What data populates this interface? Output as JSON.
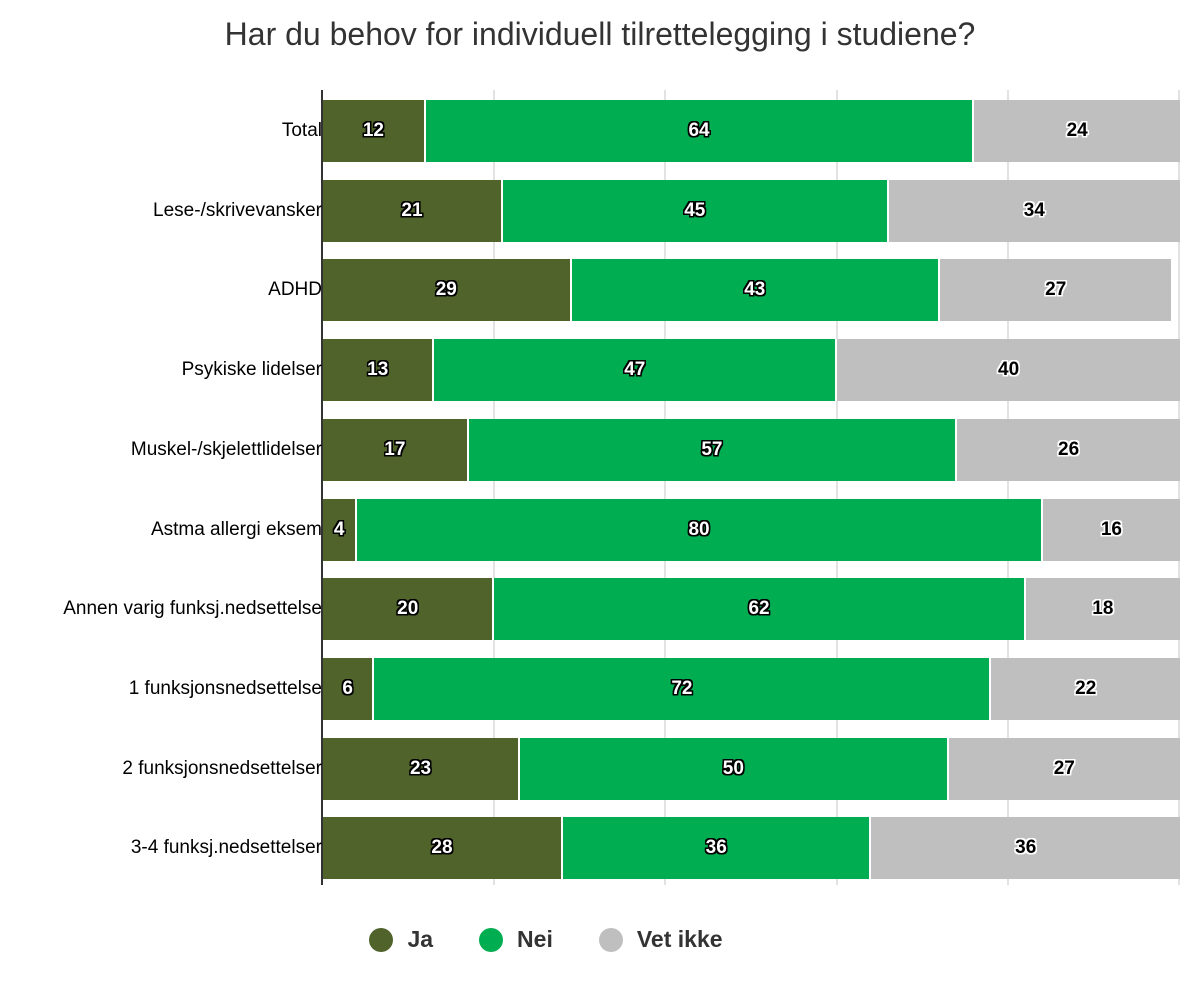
{
  "chart_data": {
    "type": "bar",
    "orientation": "horizontal",
    "stacked": true,
    "title": "Har du behov for individuell tilrettelegging i studiene?",
    "xlabel": "",
    "ylabel": "",
    "xlim": [
      0,
      100
    ],
    "grid": true,
    "legend_position": "bottom",
    "categories": [
      "Total",
      "Lese-/skrivevansker",
      "ADHD",
      "Psykiske lidelser",
      "Muskel-/skjelettlidelser",
      "Astma allergi eksem",
      "Annen varig funksj.nedsettelse",
      "1 funksjonsnedsettelse",
      "2 funksjonsnedsettelser",
      "3-4 funksj.nedsettelser"
    ],
    "series": [
      {
        "name": "Ja",
        "color": "#50632b",
        "values": [
          12,
          21,
          29,
          13,
          17,
          4,
          20,
          6,
          23,
          28
        ]
      },
      {
        "name": "Nei",
        "color": "#00ae51",
        "values": [
          64,
          45,
          43,
          47,
          57,
          80,
          62,
          72,
          50,
          36
        ]
      },
      {
        "name": "Vet ikke",
        "color": "#bfbfbf",
        "values": [
          24,
          34,
          27,
          40,
          26,
          16,
          18,
          22,
          27,
          36
        ]
      }
    ]
  },
  "title": "Har du behov for individuell tilrettelegging i studiene?",
  "legend": [
    {
      "label": "Ja",
      "color": "#50632b"
    },
    {
      "label": "Nei",
      "color": "#00ae51"
    },
    {
      "label": "Vet ikke",
      "color": "#bfbfbf"
    }
  ]
}
